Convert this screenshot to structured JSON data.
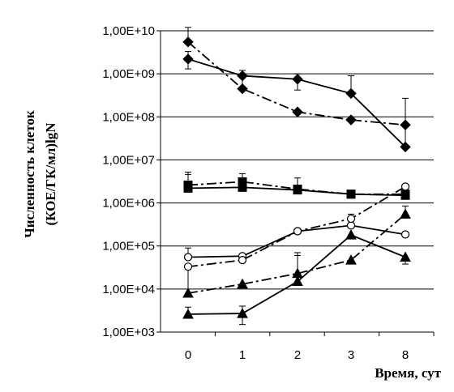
{
  "chart_data": {
    "type": "line",
    "xlabel": "Время, сут",
    "ylabel": [
      "Численность клеток",
      "(КОЕ/ГК/мл)lgN"
    ],
    "categories": [
      "0",
      "1",
      "2",
      "3",
      "8"
    ],
    "y_scale": "log",
    "ylim": [
      1000,
      10000000000
    ],
    "yticks": [
      {
        "value": 1000,
        "label": "1,00E+03"
      },
      {
        "value": 10000,
        "label": "1,00E+04"
      },
      {
        "value": 100000,
        "label": "1,00E+05"
      },
      {
        "value": 1000000,
        "label": "1,00E+06"
      },
      {
        "value": 10000000,
        "label": "1,00E+07"
      },
      {
        "value": 100000000,
        "label": "1,00E+08"
      },
      {
        "value": 1000000000,
        "label": "1,00E+09"
      },
      {
        "value": 10000000000,
        "label": "1,00E+10"
      }
    ],
    "grid": "horizontal",
    "series": [
      {
        "marker": "diamond",
        "fill": "black",
        "line": "solid",
        "values": [
          2200000000,
          900000000,
          750000000,
          350000000,
          20000000
        ],
        "err_upper": [
          3300000000,
          1200000000,
          1000000000,
          900000000,
          270000000
        ],
        "err_lower": [
          1300000000,
          null,
          420000000,
          null,
          null
        ]
      },
      {
        "marker": "diamond",
        "fill": "black",
        "line": "dashdot",
        "values": [
          5500000000,
          450000000,
          130000000,
          85000000,
          65000000
        ],
        "err_upper": [
          12000000000,
          800000000,
          null,
          null,
          null
        ]
      },
      {
        "marker": "square",
        "fill": "black",
        "line": "solid",
        "values": [
          2200000,
          2300000,
          2000000,
          1600000,
          1500000
        ],
        "err_upper": [
          5200000,
          3200000,
          3800000,
          null,
          null
        ]
      },
      {
        "marker": "square",
        "fill": "black",
        "line": "dashdot",
        "values": [
          2600000,
          3100000,
          2100000,
          1600000,
          1600000
        ],
        "err_upper": [
          4600000,
          4800000,
          null,
          null,
          null
        ]
      },
      {
        "marker": "circle",
        "fill": "white",
        "line": "solid",
        "values": [
          55000,
          58000,
          220000,
          300000,
          185000
        ],
        "err_upper": [
          90000,
          null,
          null,
          null,
          null
        ]
      },
      {
        "marker": "circle",
        "fill": "white",
        "line": "dashdot",
        "values": [
          33000,
          47000,
          220000,
          430000,
          2400000
        ],
        "err_upper": [
          null,
          null,
          null,
          550000,
          null
        ]
      },
      {
        "marker": "triangle",
        "fill": "black",
        "line": "solid",
        "values": [
          2600,
          2700,
          15000,
          180000,
          55000
        ],
        "err_upper": [
          3800,
          4000,
          70000,
          null,
          null
        ],
        "err_lower": [
          null,
          1500,
          null,
          null,
          38000
        ]
      },
      {
        "marker": "triangle",
        "fill": "black",
        "line": "dashdot",
        "values": [
          8000,
          13000,
          23000,
          47000,
          550000
        ],
        "err_upper": [
          30000,
          null,
          60000,
          null,
          850000
        ],
        "err_lower": [
          null,
          null,
          null,
          null,
          null
        ]
      }
    ]
  }
}
